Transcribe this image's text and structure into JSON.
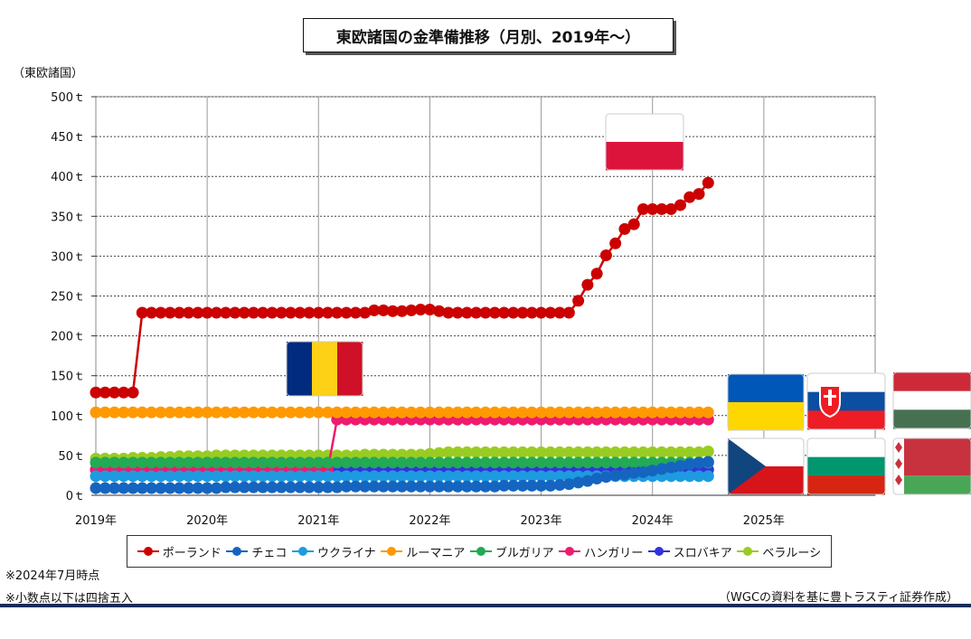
{
  "title": "東欧諸国の金準備推移（月別、2019年～）",
  "y_axis_title": "（東欧諸国）",
  "notes": [
    "※2024年7月時点",
    "※小数点以下は四捨五入"
  ],
  "source": "（WGCの資料を基に豊トラスティ証券作成）",
  "flags": [
    {
      "name": "Poland",
      "colors": [
        "#ffffff",
        "#dc143c"
      ],
      "layout": "h"
    },
    {
      "name": "Romania",
      "colors": [
        "#002b7f",
        "#fcd116",
        "#ce1126"
      ],
      "layout": "v"
    },
    {
      "name": "Ukraine",
      "colors": [
        "#0057b7",
        "#ffd700"
      ],
      "layout": "h"
    },
    {
      "name": "Slovakia",
      "colors": [
        "#ffffff",
        "#0b4ea2",
        "#ee1c25"
      ],
      "layout": "h"
    },
    {
      "name": "Hungary",
      "colors": [
        "#ce2939",
        "#ffffff",
        "#477050"
      ],
      "layout": "h"
    },
    {
      "name": "Czech",
      "colors": [
        "#ffffff",
        "#d7141a",
        "#11457e"
      ],
      "layout": "cz"
    },
    {
      "name": "Bulgaria",
      "colors": [
        "#ffffff",
        "#00966e",
        "#d62612"
      ],
      "layout": "h"
    },
    {
      "name": "Belarus",
      "colors": [
        "#c8313e",
        "#4aa657"
      ],
      "layout": "by"
    }
  ],
  "chart_data": {
    "type": "line",
    "title": "東欧諸国の金準備推移（月別、2019年～）",
    "ylabel": "（東欧諸国）",
    "xlabel": "",
    "ylim": [
      0,
      500
    ],
    "y_ticks": [
      "0ｔ",
      "50ｔ",
      "100ｔ",
      "150ｔ",
      "200ｔ",
      "250ｔ",
      "300ｔ",
      "350ｔ",
      "400ｔ",
      "450ｔ",
      "500ｔ"
    ],
    "x_ticks": [
      "2019年",
      "2020年",
      "2021年",
      "2022年",
      "2023年",
      "2024年",
      "2025年"
    ],
    "months": [
      "2019-01",
      "2019-02",
      "2019-03",
      "2019-04",
      "2019-05",
      "2019-06",
      "2019-07",
      "2019-08",
      "2019-09",
      "2019-10",
      "2019-11",
      "2019-12",
      "2020-01",
      "2020-02",
      "2020-03",
      "2020-04",
      "2020-05",
      "2020-06",
      "2020-07",
      "2020-08",
      "2020-09",
      "2020-10",
      "2020-11",
      "2020-12",
      "2021-01",
      "2021-02",
      "2021-03",
      "2021-04",
      "2021-05",
      "2021-06",
      "2021-07",
      "2021-08",
      "2021-09",
      "2021-10",
      "2021-11",
      "2021-12",
      "2022-01",
      "2022-02",
      "2022-03",
      "2022-04",
      "2022-05",
      "2022-06",
      "2022-07",
      "2022-08",
      "2022-09",
      "2022-10",
      "2022-11",
      "2022-12",
      "2023-01",
      "2023-02",
      "2023-03",
      "2023-04",
      "2023-05",
      "2023-06",
      "2023-07",
      "2023-08",
      "2023-09",
      "2023-10",
      "2023-11",
      "2023-12",
      "2024-01",
      "2024-02",
      "2024-03",
      "2024-04",
      "2024-05",
      "2024-06",
      "2024-07"
    ],
    "grid": true,
    "legend_position": "bottom",
    "series": [
      {
        "name": "ポーランド",
        "color": "#cc0000",
        "values": [
          129,
          129,
          129,
          129,
          129,
          229,
          229,
          229,
          229,
          229,
          229,
          229,
          229,
          229,
          229,
          229,
          229,
          229,
          229,
          229,
          229,
          229,
          229,
          229,
          229,
          229,
          229,
          229,
          229,
          229,
          232,
          232,
          231,
          231,
          232,
          233,
          233,
          231,
          229,
          229,
          229,
          229,
          229,
          229,
          229,
          229,
          229,
          229,
          229,
          229,
          229,
          229,
          244,
          264,
          278,
          301,
          316,
          334,
          340,
          359,
          359,
          359,
          359,
          364,
          374,
          378,
          392
        ]
      },
      {
        "name": "チェコ",
        "color": "#1565c0",
        "values": [
          9,
          9,
          9,
          9,
          9,
          9,
          9,
          9,
          9,
          9,
          9,
          9,
          9,
          9,
          10,
          10,
          10,
          10,
          10,
          10,
          10,
          10,
          10,
          10,
          10,
          10,
          10,
          11,
          11,
          11,
          11,
          11,
          11,
          11,
          11,
          11,
          11,
          11,
          11,
          11,
          11,
          11,
          11,
          11,
          12,
          12,
          12,
          12,
          12,
          12,
          13,
          14,
          16,
          18,
          21,
          23,
          25,
          26,
          28,
          29,
          31,
          33,
          35,
          37,
          39,
          41,
          42
        ]
      },
      {
        "name": "ウクライナ",
        "color": "#1e9be0",
        "values": [
          24,
          24,
          24,
          24,
          24,
          24,
          24,
          24,
          24,
          24,
          24,
          24,
          24,
          24,
          24,
          24,
          24,
          24,
          24,
          24,
          24,
          24,
          24,
          24,
          24,
          24,
          24,
          24,
          24,
          24,
          24,
          24,
          24,
          24,
          24,
          24,
          24,
          24,
          24,
          24,
          24,
          24,
          24,
          24,
          24,
          24,
          24,
          24,
          24,
          24,
          24,
          24,
          24,
          24,
          24,
          24,
          24,
          24,
          24,
          24,
          24,
          24,
          24,
          24,
          24,
          24,
          24
        ]
      },
      {
        "name": "ルーマニア",
        "color": "#ff9900",
        "values": [
          104,
          104,
          104,
          104,
          104,
          104,
          104,
          104,
          104,
          104,
          104,
          104,
          104,
          104,
          104,
          104,
          104,
          104,
          104,
          104,
          104,
          104,
          104,
          104,
          104,
          104,
          104,
          104,
          104,
          104,
          104,
          104,
          104,
          104,
          104,
          104,
          104,
          104,
          104,
          104,
          104,
          104,
          104,
          104,
          104,
          104,
          104,
          104,
          104,
          104,
          104,
          104,
          104,
          104,
          104,
          104,
          104,
          104,
          104,
          104,
          104,
          104,
          104,
          104,
          104,
          104,
          104
        ]
      },
      {
        "name": "ブルガリア",
        "color": "#22aa55",
        "values": [
          41,
          41,
          41,
          41,
          41,
          41,
          41,
          41,
          41,
          41,
          41,
          41,
          41,
          41,
          41,
          41,
          41,
          41,
          41,
          41,
          41,
          41,
          41,
          41,
          41,
          41,
          41,
          41,
          41,
          41,
          41,
          41,
          41,
          41,
          41,
          41,
          41,
          41,
          41,
          41,
          41,
          41,
          41,
          41,
          41,
          41,
          41,
          41,
          41,
          41,
          41,
          41,
          41,
          41,
          41,
          41,
          41,
          41,
          41,
          41,
          41,
          41,
          41,
          41,
          41,
          41,
          41
        ]
      },
      {
        "name": "ハンガリー",
        "color": "#ee1a6e",
        "values": [
          32,
          32,
          32,
          32,
          32,
          32,
          32,
          32,
          32,
          32,
          32,
          32,
          32,
          32,
          32,
          32,
          32,
          32,
          32,
          32,
          32,
          32,
          32,
          32,
          32,
          32,
          95,
          95,
          95,
          95,
          95,
          95,
          95,
          95,
          95,
          95,
          95,
          95,
          95,
          95,
          95,
          95,
          95,
          95,
          95,
          95,
          95,
          95,
          95,
          95,
          95,
          95,
          95,
          95,
          95,
          95,
          95,
          95,
          95,
          95,
          95,
          95,
          95,
          95,
          95,
          95,
          95
        ]
      },
      {
        "name": "スロバキア",
        "color": "#3333dd",
        "values": [
          32,
          32,
          32,
          32,
          32,
          32,
          32,
          32,
          32,
          32,
          32,
          32,
          32,
          32,
          32,
          32,
          32,
          32,
          32,
          32,
          32,
          32,
          32,
          32,
          32,
          32,
          32,
          32,
          32,
          32,
          32,
          32,
          32,
          32,
          32,
          32,
          32,
          32,
          32,
          32,
          32,
          32,
          32,
          32,
          32,
          32,
          32,
          32,
          32,
          32,
          32,
          32,
          32,
          32,
          32,
          32,
          32,
          32,
          32,
          32,
          32,
          32,
          32,
          32,
          32,
          32,
          32
        ]
      },
      {
        "name": "ベラルーシ",
        "color": "#99cc22",
        "values": [
          46,
          46,
          46,
          46,
          47,
          47,
          47,
          48,
          48,
          49,
          49,
          49,
          49,
          50,
          50,
          50,
          50,
          50,
          50,
          50,
          50,
          50,
          50,
          50,
          50,
          50,
          50,
          50,
          50,
          51,
          51,
          51,
          51,
          51,
          51,
          51,
          52,
          53,
          54,
          54,
          54,
          54,
          54,
          54,
          54,
          54,
          54,
          54,
          54,
          54,
          54,
          54,
          54,
          54,
          54,
          54,
          54,
          54,
          54,
          54,
          54,
          54,
          54,
          54,
          54,
          54,
          55
        ]
      }
    ]
  }
}
